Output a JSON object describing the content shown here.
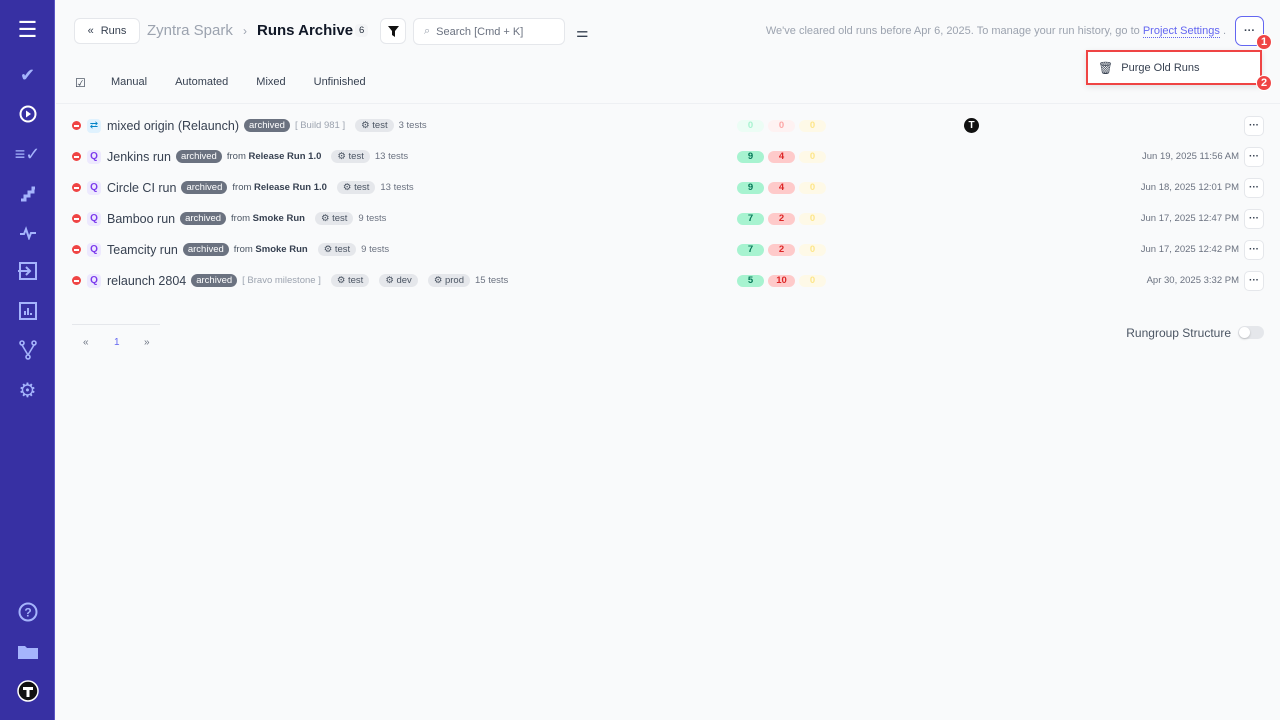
{
  "sidebar": {
    "items": [
      "menu-icon",
      "check-icon",
      "play-circle-icon",
      "list-check-icon",
      "stairs-icon",
      "pulse-icon",
      "import-icon",
      "chart-icon",
      "branch-icon",
      "gear-icon"
    ],
    "bottom": [
      "help-icon",
      "folder-icon",
      "avatar"
    ]
  },
  "header": {
    "back_label": "Runs",
    "project": "Zyntra Spark",
    "separator": "›",
    "title": "Runs Archive",
    "count": "6",
    "search_placeholder": "Search [Cmd + K]",
    "notice": "We've cleared old runs before Apr 6, 2025. To manage your run history, go to",
    "notice_link": "Project Settings",
    "notice_end": ".",
    "more": "···"
  },
  "menu": {
    "item": "Purge Old Runs",
    "annotation_1": "1",
    "annotation_2": "2"
  },
  "tabs": [
    "Manual",
    "Automated",
    "Mixed",
    "Unfinished"
  ],
  "colors": {
    "sidebar": "#3730a3",
    "accent": "#6366f1",
    "passed": "#10b981",
    "failed": "#ef4444",
    "skipped": "#f59e0b"
  },
  "runs": [
    {
      "icon": "relaunch-icon",
      "title": "mixed origin (Relaunch)",
      "status": "archived",
      "meta": "[ Build 981 ]",
      "tags": [
        "test"
      ],
      "tests": "3 tests",
      "passed": "0",
      "failed": "0",
      "skipped": "0",
      "date": "",
      "has_avatar": true
    },
    {
      "icon": "automated-icon",
      "title": "Jenkins run",
      "status": "archived",
      "from": "from",
      "source": "Release Run 1.0",
      "tags": [
        "test"
      ],
      "tests": "13 tests",
      "passed": "9",
      "failed": "4",
      "skipped": "0",
      "date": "Jun 19, 2025 11:56 AM"
    },
    {
      "icon": "automated-icon",
      "title": "Circle CI run",
      "status": "archived",
      "from": "from",
      "source": "Release Run 1.0",
      "tags": [
        "test"
      ],
      "tests": "13 tests",
      "passed": "9",
      "failed": "4",
      "skipped": "0",
      "date": "Jun 18, 2025 12:01 PM"
    },
    {
      "icon": "automated-icon",
      "title": "Bamboo run",
      "status": "archived",
      "from": "from",
      "source": "Smoke Run",
      "tags": [
        "test"
      ],
      "tests": "9 tests",
      "passed": "7",
      "failed": "2",
      "skipped": "0",
      "date": "Jun 17, 2025 12:47 PM"
    },
    {
      "icon": "automated-icon",
      "title": "Teamcity run",
      "status": "archived",
      "from": "from",
      "source": "Smoke Run",
      "tags": [
        "test"
      ],
      "tests": "9 tests",
      "passed": "7",
      "failed": "2",
      "skipped": "0",
      "date": "Jun 17, 2025 12:42 PM"
    },
    {
      "icon": "automated-icon",
      "title": "relaunch 2804",
      "status": "archived",
      "meta": "[ Bravo milestone ]",
      "tags": [
        "test",
        "dev",
        "prod"
      ],
      "tests": "15 tests",
      "passed": "5",
      "failed": "10",
      "skipped": "0",
      "date": "Apr 30, 2025 3:32 PM"
    }
  ],
  "pagination": {
    "prev": "«",
    "current": "1",
    "next": "»"
  },
  "rungroup": {
    "label": "Rungroup Structure",
    "enabled": false
  }
}
